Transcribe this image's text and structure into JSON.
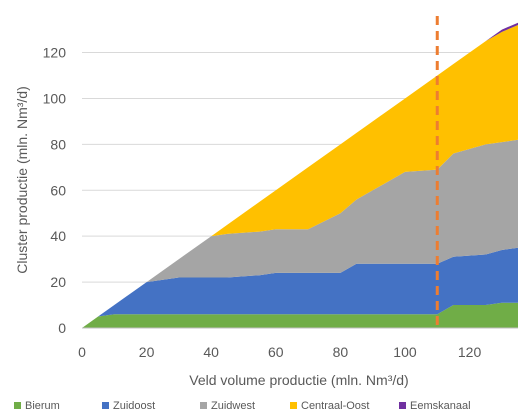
{
  "chart_data": {
    "type": "area",
    "stacked": true,
    "xlabel": "Veld volume productie (mln. Nm³/d)",
    "ylabel": "Cluster productie (mln. Nm³/d)",
    "xlim": [
      0,
      135
    ],
    "ylim": [
      0,
      132
    ],
    "x_ticks": [
      0,
      20,
      40,
      60,
      80,
      100,
      120
    ],
    "y_ticks": [
      0,
      20,
      40,
      60,
      80,
      100,
      120
    ],
    "grid": "horizontal",
    "legend_position": "bottom",
    "reference_line": {
      "x": 110,
      "style": "dashed",
      "color": "#ed7d31"
    },
    "x": [
      0,
      5,
      10,
      20,
      30,
      40,
      45,
      55,
      60,
      70,
      80,
      85,
      90,
      100,
      110,
      115,
      125,
      130,
      135
    ],
    "series": [
      {
        "name": "Bierum",
        "color": "#70ad47",
        "values": [
          0,
          5,
          6,
          6,
          6,
          6,
          6,
          6,
          6,
          6,
          6,
          6,
          6,
          6,
          6,
          10,
          10,
          11,
          11
        ]
      },
      {
        "name": "Zuidoost",
        "color": "#4472c4",
        "values": [
          0,
          0,
          4,
          14,
          16,
          16,
          16,
          17,
          18,
          18,
          18,
          22,
          22,
          22,
          22,
          21,
          22,
          23,
          24
        ]
      },
      {
        "name": "Zuidwest",
        "color": "#a5a5a5",
        "values": [
          0,
          0,
          0,
          0,
          8,
          18,
          19,
          19,
          19,
          19,
          26,
          28,
          32,
          40,
          41,
          45,
          48,
          47,
          47
        ]
      },
      {
        "name": "Centraal-Oost",
        "color": "#ffc000",
        "values": [
          0,
          0,
          0,
          0,
          0,
          0,
          4,
          13,
          17,
          27,
          30,
          29,
          30,
          32,
          41,
          39,
          45,
          48,
          50
        ]
      },
      {
        "name": "Eemskanaal",
        "color": "#7030a0",
        "values": [
          0,
          0,
          0,
          0,
          0,
          0,
          0,
          0,
          0,
          0,
          0,
          0,
          0,
          0,
          0,
          0,
          0,
          1,
          1
        ]
      }
    ]
  }
}
